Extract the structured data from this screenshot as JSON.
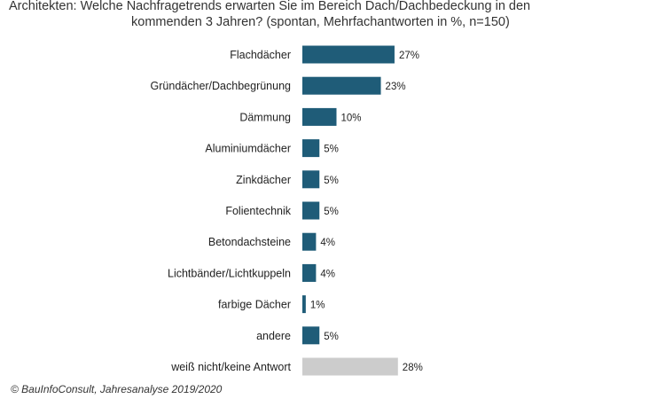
{
  "title_line1": "Architekten: Welche Nachfragetrends erwarten Sie im Bereich Dach/Dachbedeckung in den",
  "title_line2": "kommenden 3 Jahren? (spontan, Mehrfachantworten in %, n=150)",
  "footer": "© BauInfoConsult, Jahresanalyse 2019/2020",
  "colors": {
    "bar": "#1f5c78",
    "bar_neutral": "#cccccc",
    "text": "#222222"
  },
  "chart_data": {
    "type": "bar",
    "orientation": "horizontal",
    "title": "Architekten: Welche Nachfragetrends erwarten Sie im Bereich Dach/Dachbedeckung in den kommenden 3 Jahren? (spontan, Mehrfachantworten in %, n=150)",
    "categories": [
      "Flachdächer",
      "Gründächer/Dachbegrünung",
      "Dämmung",
      "Aluminiumdächer",
      "Zinkdächer",
      "Folientechnik",
      "Betondachsteine",
      "Lichtbänder/Lichtkuppeln",
      "farbige Dächer",
      "andere",
      "weiß nicht/keine Antwort"
    ],
    "values": [
      27,
      23,
      10,
      5,
      5,
      5,
      4,
      4,
      1,
      5,
      28
    ],
    "value_labels": [
      "27%",
      "23%",
      "10%",
      "5%",
      "5%",
      "5%",
      "4%",
      "4%",
      "1%",
      "5%",
      "28%"
    ],
    "neutral_category": "weiß nicht/keine Antwort",
    "xlim": [
      0,
      28
    ],
    "grid": false,
    "legend": "none"
  }
}
